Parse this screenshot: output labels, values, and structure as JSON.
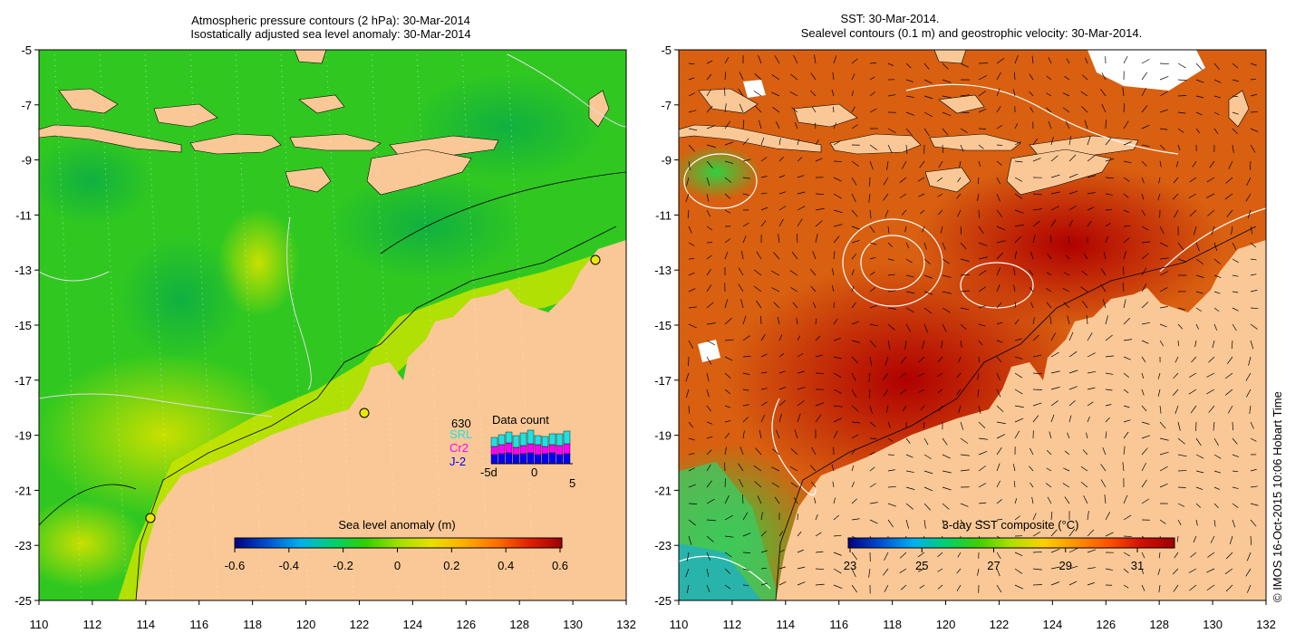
{
  "left_panel": {
    "title_line1": "Atmospheric pressure contours (2 hPa): 30-Mar-2014",
    "title_line2": "Isostatically adjusted sea level anomaly: 30-Mar-2014",
    "colorbar_label": "Sea level anomaly (m)",
    "colorbar_ticks": [
      "-0.6",
      "-0.4",
      "-0.2",
      "0",
      "0.2",
      "0.4",
      "0.6"
    ],
    "colorbar_colors": [
      "#000080",
      "#0050d0",
      "#00b0f0",
      "#00d070",
      "#30d000",
      "#a0e000",
      "#e8e000",
      "#ffb000",
      "#ff7000",
      "#e02000",
      "#a00000"
    ],
    "ocean_color": "#30c820",
    "land_color": "#fac896",
    "data_count": {
      "title": "Data count",
      "total": "630",
      "missions": [
        {
          "name": "SRL",
          "color": "#20e0e0"
        },
        {
          "name": "Cr2",
          "color": "#ff00ff"
        },
        {
          "name": "J-2",
          "color": "#0000ff"
        }
      ],
      "axis_labels": [
        "-5d",
        "0",
        "5"
      ]
    }
  },
  "right_panel": {
    "title_line1": "SST: 30-Mar-2014.",
    "title_line2": "Sealevel contours (0.1 m) and geostrophic velocity: 30-Mar-2014.",
    "colorbar_label": "3-day SST composite (°C)",
    "colorbar_ticks": [
      "23",
      "25",
      "27",
      "29",
      "31"
    ],
    "colorbar_colors": [
      "#000080",
      "#0050d0",
      "#00b0f0",
      "#00d070",
      "#40d000",
      "#b0e000",
      "#ffd000",
      "#ff9000",
      "#ff5000",
      "#d01000",
      "#a00000"
    ],
    "ocean_color": "#d86010",
    "land_color": "#fac896"
  },
  "axes": {
    "lon_ticks": [
      "110",
      "112",
      "114",
      "116",
      "118",
      "120",
      "122",
      "124",
      "126",
      "128",
      "130",
      "132"
    ],
    "lat_ticks": [
      "-5",
      "-7",
      "-9",
      "-11",
      "-13",
      "-15",
      "-17",
      "-19",
      "-21",
      "-23",
      "-25"
    ],
    "lon_range": [
      110,
      132
    ],
    "lat_range": [
      -25,
      -5
    ]
  },
  "credit": "© IMOS 16-Oct-2015 10:06 Hobart Time"
}
